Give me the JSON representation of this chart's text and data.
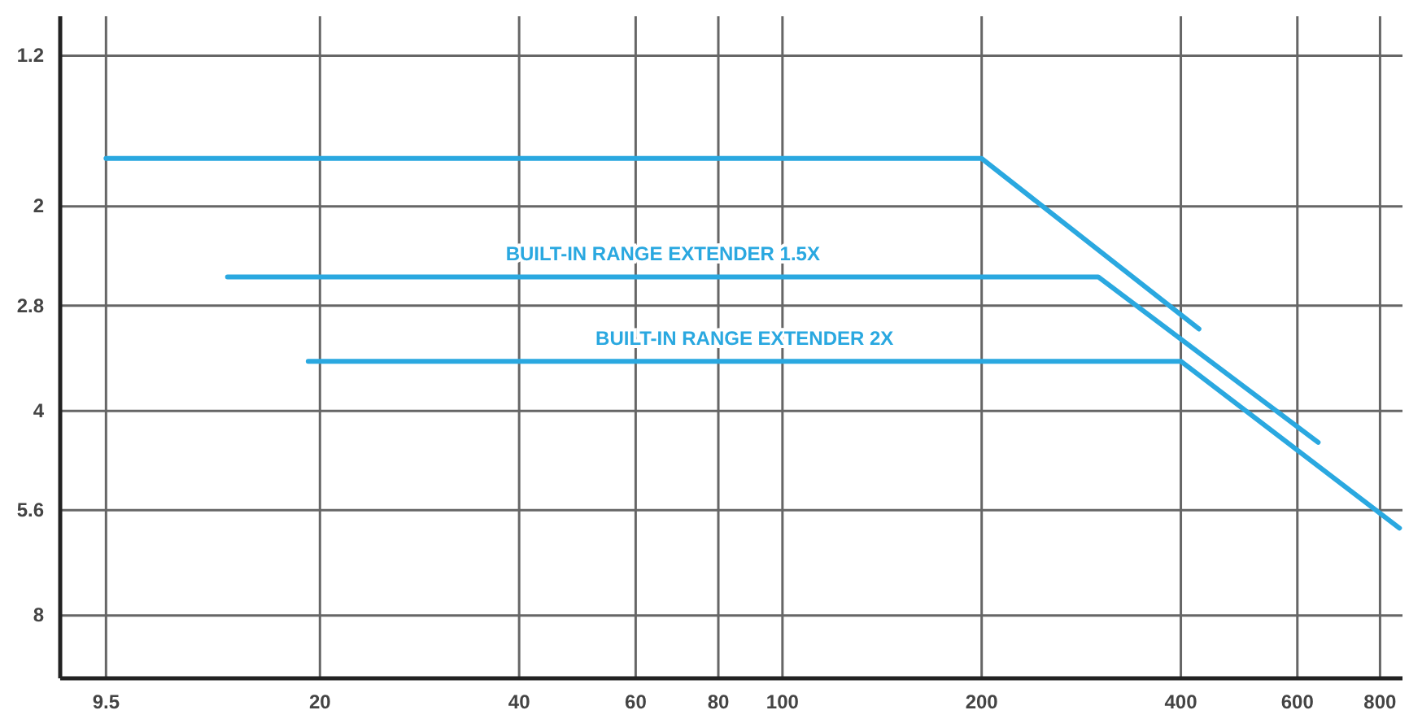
{
  "chart_data": {
    "type": "line",
    "log": "xy",
    "grid": true,
    "marker": "none",
    "line_style": "solid",
    "xlim": [
      8.1,
      865
    ],
    "ylim": [
      9.9,
      1.05
    ],
    "xticks": [
      9.5,
      20,
      40,
      60,
      80,
      100,
      200,
      400,
      600,
      800
    ],
    "yticks": [
      1.2,
      2,
      2.8,
      4,
      5.6,
      8
    ],
    "series": [
      {
        "color": "#2aa8e0",
        "x": [
          9.5,
          200,
          426
        ],
        "values": [
          1.7,
          1.7,
          3.03
        ]
      },
      {
        "name": "BUILT-IN RANGE EXTENDER 1.5X",
        "color": "#2aa8e0",
        "x": [
          14.5,
          300,
          645
        ],
        "values": [
          2.54,
          2.54,
          4.45
        ]
      },
      {
        "name": "BUILT-IN RANGE EXTENDER 2X",
        "color": "#2aa8e0",
        "x": [
          19.2,
          400,
          856
        ],
        "values": [
          3.38,
          3.38,
          5.95
        ]
      }
    ]
  }
}
